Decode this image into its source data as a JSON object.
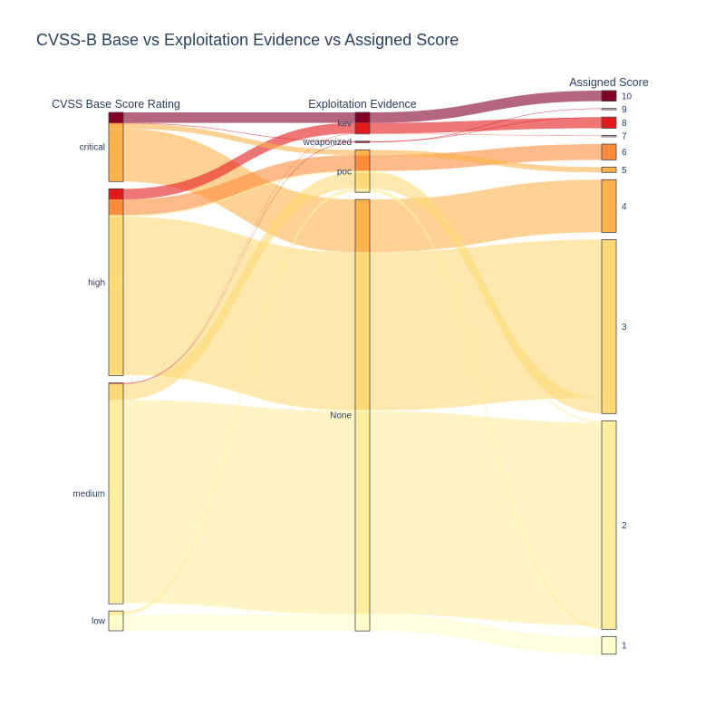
{
  "chart_data": {
    "type": "parallel_categories",
    "title": "CVSS-B Base vs Exploitation Evidence vs Assigned Score",
    "dimensions": [
      {
        "label": "CVSS Base Score Rating",
        "categories": [
          "critical",
          "high",
          "medium",
          "low"
        ]
      },
      {
        "label": "Exploitation Evidence",
        "categories": [
          "kev",
          "weaponized",
          "poc",
          "None"
        ]
      },
      {
        "label": "Assigned Score",
        "categories": [
          "10",
          "9",
          "8",
          "7",
          "6",
          "5",
          "4",
          "3",
          "2",
          "1"
        ]
      }
    ],
    "colorscale": {
      "10": "#800026",
      "9": "#bd0026",
      "8": "#e31a1c",
      "7": "#fc4e2a",
      "6": "#fd8d3c",
      "5": "#feb24c",
      "4": "#feb24c",
      "3": "#fed976",
      "2": "#ffeda0",
      "1": "#ffffcc"
    },
    "paths": [
      {
        "v": [
          "critical",
          "kev",
          "10"
        ],
        "count": 4
      },
      {
        "v": [
          "critical",
          "poc",
          "5"
        ],
        "count": 2
      },
      {
        "v": [
          "critical",
          "weaponized",
          "8"
        ],
        "count": 0.25
      },
      {
        "v": [
          "critical",
          "None",
          "4"
        ],
        "count": 20
      },
      {
        "v": [
          "high",
          "kev",
          "8"
        ],
        "count": 4
      },
      {
        "v": [
          "high",
          "poc",
          "6"
        ],
        "count": 6
      },
      {
        "v": [
          "high",
          "None",
          "3"
        ],
        "count": 60
      },
      {
        "v": [
          "high",
          "poc",
          "2"
        ],
        "count": 0.6
      },
      {
        "v": [
          "high",
          "None",
          "1"
        ],
        "count": 0.3
      },
      {
        "v": [
          "medium",
          "kev",
          "7"
        ],
        "count": 0.2
      },
      {
        "v": [
          "medium",
          "weaponized",
          "9"
        ],
        "count": 0.2
      },
      {
        "v": [
          "medium",
          "poc",
          "3"
        ],
        "count": 6
      },
      {
        "v": [
          "medium",
          "None",
          "2"
        ],
        "count": 77
      },
      {
        "v": [
          "medium",
          "None",
          "1"
        ],
        "count": 0.4
      },
      {
        "v": [
          "low",
          "poc",
          "2"
        ],
        "count": 1.5
      },
      {
        "v": [
          "low",
          "None",
          "1"
        ],
        "count": 6
      }
    ]
  }
}
